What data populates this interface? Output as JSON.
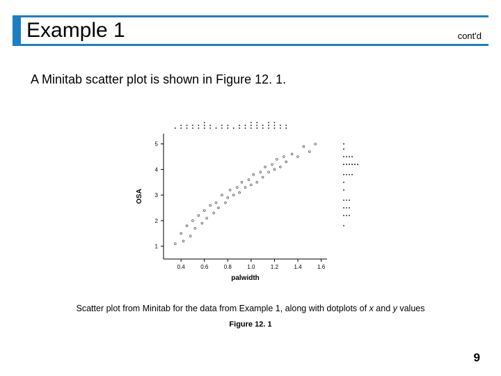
{
  "title": "Example 1",
  "contd": "cont'd",
  "body_text": "A Minitab scatter plot is shown in Figure 12. 1.",
  "caption_pre": "Scatter plot from Minitab for the data from Example 1, along with dotplots of ",
  "caption_x": "x",
  "caption_mid": " and ",
  "caption_y": "y",
  "caption_post": " values",
  "figure_label": "Figure 12. 1",
  "page_number": "9",
  "chart": {
    "type": "scatter",
    "xlabel": "palwidth",
    "ylabel": "OSA",
    "xlim": [
      0.25,
      1.65
    ],
    "ylim": [
      0.5,
      5.4
    ],
    "xticks": [
      0.4,
      0.6,
      0.8,
      1.0,
      1.2,
      1.4,
      1.6
    ],
    "yticks": [
      1,
      2,
      3,
      4,
      5
    ],
    "axis_color": "#000000",
    "tick_font_size": 8,
    "label_font_size": 10,
    "label_font_weight": "bold",
    "marker_radius": 1.4,
    "marker_stroke": "#444444",
    "marker_fill": "none",
    "dot_marker_color": "#000000",
    "dot_marker_radius": 0.9,
    "points": [
      [
        0.35,
        1.1
      ],
      [
        0.4,
        1.5
      ],
      [
        0.42,
        1.2
      ],
      [
        0.45,
        1.8
      ],
      [
        0.48,
        1.4
      ],
      [
        0.5,
        2.0
      ],
      [
        0.52,
        1.7
      ],
      [
        0.55,
        2.2
      ],
      [
        0.58,
        1.9
      ],
      [
        0.6,
        2.4
      ],
      [
        0.62,
        2.1
      ],
      [
        0.65,
        2.6
      ],
      [
        0.68,
        2.3
      ],
      [
        0.7,
        2.7
      ],
      [
        0.72,
        2.5
      ],
      [
        0.75,
        3.0
      ],
      [
        0.78,
        2.7
      ],
      [
        0.8,
        2.9
      ],
      [
        0.82,
        3.2
      ],
      [
        0.85,
        3.0
      ],
      [
        0.88,
        3.3
      ],
      [
        0.9,
        3.1
      ],
      [
        0.92,
        3.5
      ],
      [
        0.95,
        3.3
      ],
      [
        0.98,
        3.6
      ],
      [
        1.0,
        3.4
      ],
      [
        1.02,
        3.8
      ],
      [
        1.05,
        3.5
      ],
      [
        1.08,
        3.9
      ],
      [
        1.1,
        3.7
      ],
      [
        1.12,
        4.1
      ],
      [
        1.15,
        3.9
      ],
      [
        1.18,
        4.2
      ],
      [
        1.2,
        4.0
      ],
      [
        1.22,
        4.4
      ],
      [
        1.25,
        4.1
      ],
      [
        1.28,
        4.5
      ],
      [
        1.3,
        4.3
      ],
      [
        1.35,
        4.6
      ],
      [
        1.4,
        4.5
      ],
      [
        1.45,
        4.9
      ],
      [
        1.5,
        4.7
      ],
      [
        1.55,
        5.0
      ]
    ],
    "top_dotplot": {
      "columns": [
        {
          "x": 0.35,
          "n": 1
        },
        {
          "x": 0.4,
          "n": 2
        },
        {
          "x": 0.45,
          "n": 2
        },
        {
          "x": 0.5,
          "n": 2
        },
        {
          "x": 0.55,
          "n": 2
        },
        {
          "x": 0.6,
          "n": 3
        },
        {
          "x": 0.65,
          "n": 2
        },
        {
          "x": 0.7,
          "n": 1
        },
        {
          "x": 0.75,
          "n": 2
        },
        {
          "x": 0.8,
          "n": 2
        },
        {
          "x": 0.85,
          "n": 1
        },
        {
          "x": 0.9,
          "n": 2
        },
        {
          "x": 0.95,
          "n": 2
        },
        {
          "x": 1.0,
          "n": 3
        },
        {
          "x": 1.05,
          "n": 3
        },
        {
          "x": 1.1,
          "n": 2
        },
        {
          "x": 1.15,
          "n": 3
        },
        {
          "x": 1.2,
          "n": 3
        },
        {
          "x": 1.25,
          "n": 2
        },
        {
          "x": 1.3,
          "n": 2
        }
      ]
    },
    "right_dotplot": {
      "rows": [
        {
          "y": 5.0,
          "n": 1
        },
        {
          "y": 4.8,
          "n": 1
        },
        {
          "y": 4.5,
          "n": 4
        },
        {
          "y": 4.2,
          "n": 6
        },
        {
          "y": 3.8,
          "n": 4
        },
        {
          "y": 3.5,
          "n": 1
        },
        {
          "y": 3.2,
          "n": 1
        },
        {
          "y": 2.8,
          "n": 3
        },
        {
          "y": 2.5,
          "n": 3
        },
        {
          "y": 2.2,
          "n": 3
        },
        {
          "y": 1.8,
          "n": 1
        }
      ]
    }
  }
}
